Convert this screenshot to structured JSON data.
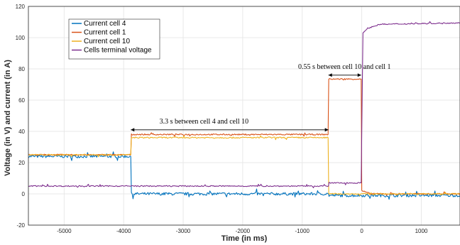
{
  "chart_data": {
    "type": "line",
    "xlabel": "Time (in ms)",
    "ylabel": "Voltage (in V) and current (in A)",
    "xlim": [
      -5600,
      1650
    ],
    "ylim": [
      -20,
      120
    ],
    "xticks": [
      -5000,
      -4000,
      -3000,
      -2000,
      -1000,
      0,
      1000
    ],
    "yticks": [
      -20,
      0,
      20,
      40,
      60,
      80,
      100,
      120
    ],
    "grid": true,
    "legend_position": "top-left",
    "series": [
      {
        "name": "Current cell 4",
        "color": "#0072BD",
        "points": [
          [
            -5600,
            24
          ],
          [
            -3880,
            24
          ],
          [
            -3870,
            0
          ],
          [
            -560,
            0
          ],
          [
            -550,
            -1
          ],
          [
            1650,
            -1
          ]
        ]
      },
      {
        "name": "Current cell 1",
        "color": "#D95319",
        "points": [
          [
            -5600,
            25
          ],
          [
            -3880,
            25
          ],
          [
            -3870,
            38
          ],
          [
            -565,
            38
          ],
          [
            -555,
            73.5
          ],
          [
            -10,
            73.5
          ],
          [
            0,
            2
          ],
          [
            150,
            0
          ],
          [
            1650,
            0
          ]
        ]
      },
      {
        "name": "Current cell 10",
        "color": "#EDB120",
        "points": [
          [
            -5600,
            25
          ],
          [
            -3880,
            25
          ],
          [
            -3870,
            36
          ],
          [
            -565,
            36
          ],
          [
            -555,
            0
          ],
          [
            1650,
            0
          ]
        ]
      },
      {
        "name": "Cells terminal voltage",
        "color": "#7E2F8E",
        "points": [
          [
            -5600,
            5
          ],
          [
            -560,
            5
          ],
          [
            -550,
            7
          ],
          [
            -10,
            7
          ],
          [
            20,
            103
          ],
          [
            100,
            106
          ],
          [
            300,
            108.5
          ],
          [
            1650,
            109.5
          ]
        ]
      }
    ],
    "annotations": [
      {
        "text": "3.3 s between cell 4 and cell 10",
        "x": -2650,
        "y": 45,
        "arrow": [
          -3880,
          -560
        ],
        "arrow_y": 41
      },
      {
        "text": "0.55 s between cell 10 and cell 1",
        "x": -290,
        "y": 80,
        "arrow": [
          -560,
          -10
        ],
        "arrow_y": 76
      }
    ]
  }
}
